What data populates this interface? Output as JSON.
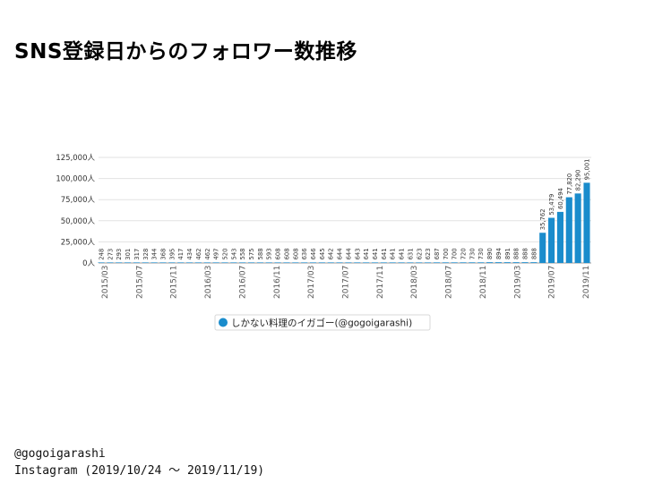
{
  "slide": {
    "title": "SNS登録日からのフォロワー数推移",
    "caption_line1": "@gogoigarashi",
    "caption_line2": "Instagram (2019/10/24 〜 2019/11/19)"
  },
  "chart_data": {
    "type": "bar",
    "title": "",
    "xlabel": "",
    "ylabel": "",
    "ylim": [
      0,
      125000
    ],
    "yticks": [
      0,
      25000,
      50000,
      75000,
      100000,
      125000
    ],
    "ytick_labels": [
      "0人",
      "25,000人",
      "50,000人",
      "75,000人",
      "100,000人",
      "125,000人"
    ],
    "xtick_labels": [
      "2015/03",
      "2015/07",
      "2015/11",
      "2016/03",
      "2016/07",
      "2016/11",
      "2017/03",
      "2017/07",
      "2017/11",
      "2018/03",
      "2018/07",
      "2018/11",
      "2019/03",
      "2019/07",
      "2019/11"
    ],
    "bar_color": "#1a8ccc",
    "grid": true,
    "legend_position": "bottom",
    "series": [
      {
        "name": "しかない料理のイガゴー(@gogoigarashi)",
        "labels": [
          "248",
          "273",
          "293",
          "301",
          "317",
          "328",
          "344",
          "368",
          "395",
          "417",
          "434",
          "462",
          "462",
          "497",
          "520",
          "543",
          "558",
          "575",
          "588",
          "593",
          "608",
          "608",
          "608",
          "636",
          "646",
          "645",
          "642",
          "644",
          "644",
          "643",
          "641",
          "641",
          "641",
          "641",
          "641",
          "631",
          "623",
          "623",
          "687",
          "700",
          "700",
          "720",
          "730",
          "730",
          "890",
          "894",
          "891",
          "888",
          "888",
          "888",
          "35,762",
          "53,479",
          "60,494",
          "77,820",
          "82,290",
          "95,001"
        ],
        "values": [
          248,
          273,
          293,
          301,
          317,
          328,
          344,
          368,
          395,
          417,
          434,
          462,
          462,
          497,
          520,
          543,
          558,
          575,
          588,
          593,
          608,
          608,
          608,
          636,
          646,
          645,
          642,
          644,
          644,
          643,
          641,
          641,
          641,
          641,
          641,
          631,
          623,
          623,
          687,
          700,
          700,
          720,
          730,
          730,
          890,
          894,
          891,
          888,
          888,
          888,
          35762,
          53479,
          60494,
          77820,
          82290,
          95001
        ]
      }
    ]
  }
}
